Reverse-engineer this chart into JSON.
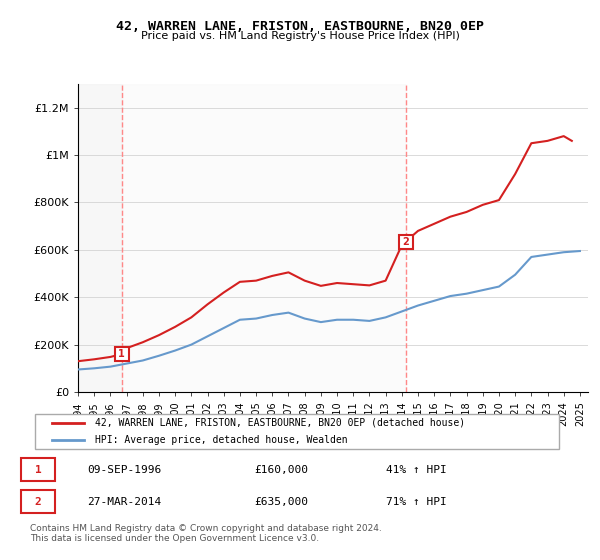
{
  "title1": "42, WARREN LANE, FRISTON, EASTBOURNE, BN20 0EP",
  "title2": "Price paid vs. HM Land Registry's House Price Index (HPI)",
  "xlabel": "",
  "ylabel": "",
  "ylim": [
    0,
    1300000
  ],
  "yticks": [
    0,
    200000,
    400000,
    600000,
    800000,
    1000000,
    1200000
  ],
  "ytick_labels": [
    "£0",
    "£200K",
    "£400K",
    "£600K",
    "£800K",
    "£1M",
    "£1.2M"
  ],
  "xlim_start": 1994.0,
  "xlim_end": 2025.5,
  "sale1_x": 1996.69,
  "sale1_y": 160000,
  "sale2_x": 2014.24,
  "sale2_y": 635000,
  "sale1_label": "1",
  "sale2_label": "2",
  "vline1_x": 1996.69,
  "vline2_x": 2014.24,
  "legend_line1": "42, WARREN LANE, FRISTON, EASTBOURNE, BN20 0EP (detached house)",
  "legend_line2": "HPI: Average price, detached house, Wealden",
  "table_row1": [
    "1",
    "09-SEP-1996",
    "£160,000",
    "41% ↑ HPI"
  ],
  "table_row2": [
    "2",
    "27-MAR-2014",
    "£635,000",
    "71% ↑ HPI"
  ],
  "footer": "Contains HM Land Registry data © Crown copyright and database right 2024.\nThis data is licensed under the Open Government Licence v3.0.",
  "line_color_red": "#d42020",
  "line_color_blue": "#6699cc",
  "vline_color": "#ff9999",
  "marker_box_color": "#d42020",
  "background_hatch_color": "#e8e8e8",
  "hpi_years": [
    1994,
    1995,
    1996,
    1997,
    1998,
    1999,
    2000,
    2001,
    2002,
    2003,
    2004,
    2005,
    2006,
    2007,
    2008,
    2009,
    2010,
    2011,
    2012,
    2013,
    2014,
    2015,
    2016,
    2017,
    2018,
    2019,
    2020,
    2021,
    2022,
    2023,
    2024,
    2025
  ],
  "hpi_values": [
    95000,
    100000,
    107000,
    120000,
    133000,
    153000,
    175000,
    200000,
    235000,
    270000,
    305000,
    310000,
    325000,
    335000,
    310000,
    295000,
    305000,
    305000,
    300000,
    315000,
    340000,
    365000,
    385000,
    405000,
    415000,
    430000,
    445000,
    495000,
    570000,
    580000,
    590000,
    595000
  ],
  "prop_years": [
    1994,
    1995,
    1996,
    1996.69,
    1997,
    1998,
    1999,
    2000,
    2001,
    2002,
    2003,
    2004,
    2005,
    2006,
    2007,
    2008,
    2009,
    2010,
    2011,
    2012,
    2013,
    2014,
    2014.24,
    2015,
    2016,
    2017,
    2018,
    2019,
    2020,
    2021,
    2022,
    2023,
    2024,
    2024.5
  ],
  "prop_values": [
    130000,
    138000,
    148000,
    160000,
    185000,
    210000,
    240000,
    275000,
    315000,
    370000,
    420000,
    465000,
    470000,
    490000,
    505000,
    470000,
    448000,
    460000,
    455000,
    450000,
    470000,
    620000,
    635000,
    680000,
    710000,
    740000,
    760000,
    790000,
    810000,
    920000,
    1050000,
    1060000,
    1080000,
    1060000
  ],
  "xtick_years": [
    1994,
    1995,
    1996,
    1997,
    1998,
    1999,
    2000,
    2001,
    2002,
    2003,
    2004,
    2005,
    2006,
    2007,
    2008,
    2009,
    2010,
    2011,
    2012,
    2013,
    2014,
    2015,
    2016,
    2017,
    2018,
    2019,
    2020,
    2021,
    2022,
    2023,
    2024,
    2025
  ]
}
